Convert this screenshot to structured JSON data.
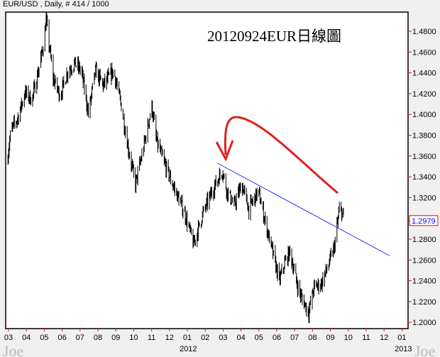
{
  "header": {
    "title": "EUR/USD , Daily, # 414 / 1000"
  },
  "annotation": {
    "title": "20120924EUR日線圖"
  },
  "watermark": "Joe",
  "colors": {
    "bars": "#000000",
    "trendline": "#0000ff",
    "arrow": "#e02020",
    "last_price": "#0000ff",
    "tick_marks": "#ff0000"
  },
  "chart_data": {
    "type": "ohlc",
    "symbol": "EUR/USD",
    "timeframe": "Daily",
    "ylim": [
      1.2,
      1.48
    ],
    "y_ticks": [
      "1.4800",
      "1.4600",
      "1.4400",
      "1.4200",
      "1.4000",
      "1.3800",
      "1.3600",
      "1.3400",
      "1.3200",
      "1.2800",
      "1.2600",
      "1.2400",
      "1.2200",
      "1.2000"
    ],
    "x_ticks": [
      "03",
      "04",
      "05",
      "06",
      "07",
      "08",
      "09",
      "10",
      "11",
      "12",
      "01",
      "02",
      "03",
      "04",
      "05",
      "06",
      "07",
      "08",
      "09",
      "10",
      "11",
      "12",
      "01"
    ],
    "x_tick_start": "2011-03",
    "year_labels": [
      {
        "label": "2012",
        "month": "2012-01"
      },
      {
        "label": "2013",
        "month": "2013-01"
      }
    ],
    "last_price": "1.2979",
    "approx_close_path": [
      [
        "2011-02-26",
        1.353
      ],
      [
        "2011-03-05",
        1.384
      ],
      [
        "2011-03-17",
        1.397
      ],
      [
        "2011-03-29",
        1.421
      ],
      [
        "2011-04-10",
        1.414
      ],
      [
        "2011-04-22",
        1.445
      ],
      [
        "2011-04-30",
        1.469
      ],
      [
        "2011-05-04",
        1.491
      ],
      [
        "2011-05-16",
        1.435
      ],
      [
        "2011-05-28",
        1.418
      ],
      [
        "2011-06-10",
        1.442
      ],
      [
        "2011-06-22",
        1.449
      ],
      [
        "2011-07-03",
        1.442
      ],
      [
        "2011-07-15",
        1.401
      ],
      [
        "2011-07-27",
        1.442
      ],
      [
        "2011-08-09",
        1.428
      ],
      [
        "2011-08-27",
        1.442
      ],
      [
        "2011-09-09",
        1.408
      ],
      [
        "2011-09-21",
        1.367
      ],
      [
        "2011-10-03",
        1.333
      ],
      [
        "2011-10-15",
        1.363
      ],
      [
        "2011-10-31",
        1.408
      ],
      [
        "2011-11-08",
        1.374
      ],
      [
        "2011-11-26",
        1.346
      ],
      [
        "2011-12-08",
        1.329
      ],
      [
        "2011-12-26",
        1.305
      ],
      [
        "2012-01-10",
        1.275
      ],
      [
        "2012-01-26",
        1.305
      ],
      [
        "2012-02-13",
        1.329
      ],
      [
        "2012-02-28",
        1.346
      ],
      [
        "2012-03-07",
        1.326
      ],
      [
        "2012-03-19",
        1.312
      ],
      [
        "2012-04-01",
        1.333
      ],
      [
        "2012-04-13",
        1.309
      ],
      [
        "2012-04-29",
        1.326
      ],
      [
        "2012-05-13",
        1.292
      ],
      [
        "2012-05-25",
        1.264
      ],
      [
        "2012-06-04",
        1.24
      ],
      [
        "2012-06-13",
        1.257
      ],
      [
        "2012-06-22",
        1.268
      ],
      [
        "2012-07-04",
        1.237
      ],
      [
        "2012-07-12",
        1.223
      ],
      [
        "2012-07-24",
        1.21
      ],
      [
        "2012-08-02",
        1.234
      ],
      [
        "2012-08-14",
        1.237
      ],
      [
        "2012-08-26",
        1.254
      ],
      [
        "2012-09-05",
        1.271
      ],
      [
        "2012-09-15",
        1.312
      ],
      [
        "2012-09-22",
        1.298
      ]
    ],
    "trendline": [
      [
        "2012-02-20",
        1.353
      ],
      [
        "2012-12-09",
        1.264
      ]
    ]
  }
}
